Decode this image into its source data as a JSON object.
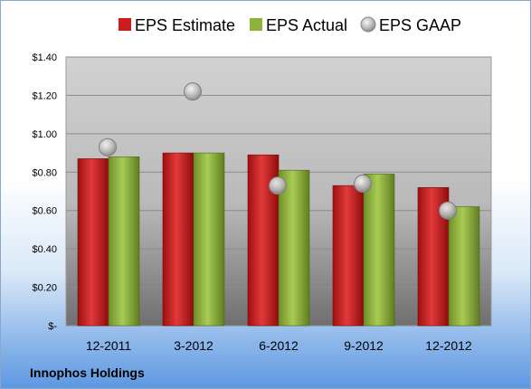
{
  "chart_data": {
    "type": "bar",
    "categories": [
      "12-2011",
      "3-2012",
      "6-2012",
      "9-2012",
      "12-2012"
    ],
    "series": [
      {
        "name": "EPS Estimate",
        "type": "bar",
        "color": "#cc1c1c",
        "values": [
          0.87,
          0.9,
          0.89,
          0.73,
          0.72
        ]
      },
      {
        "name": "EPS Actual",
        "type": "bar",
        "color": "#8fb33a",
        "values": [
          0.88,
          0.9,
          0.81,
          0.79,
          0.62
        ]
      },
      {
        "name": "EPS GAAP",
        "type": "scatter",
        "color": "#b4b4b4",
        "values": [
          0.93,
          1.22,
          0.73,
          0.74,
          0.6
        ]
      }
    ],
    "y_ticks": [
      "$-",
      "$0.20",
      "$0.40",
      "$0.60",
      "$0.80",
      "$1.00",
      "$1.20",
      "$1.40"
    ],
    "ylim": [
      0,
      1.4
    ],
    "legend_position": "top",
    "grid": true
  },
  "footer": {
    "company": "Innophos Holdings"
  }
}
